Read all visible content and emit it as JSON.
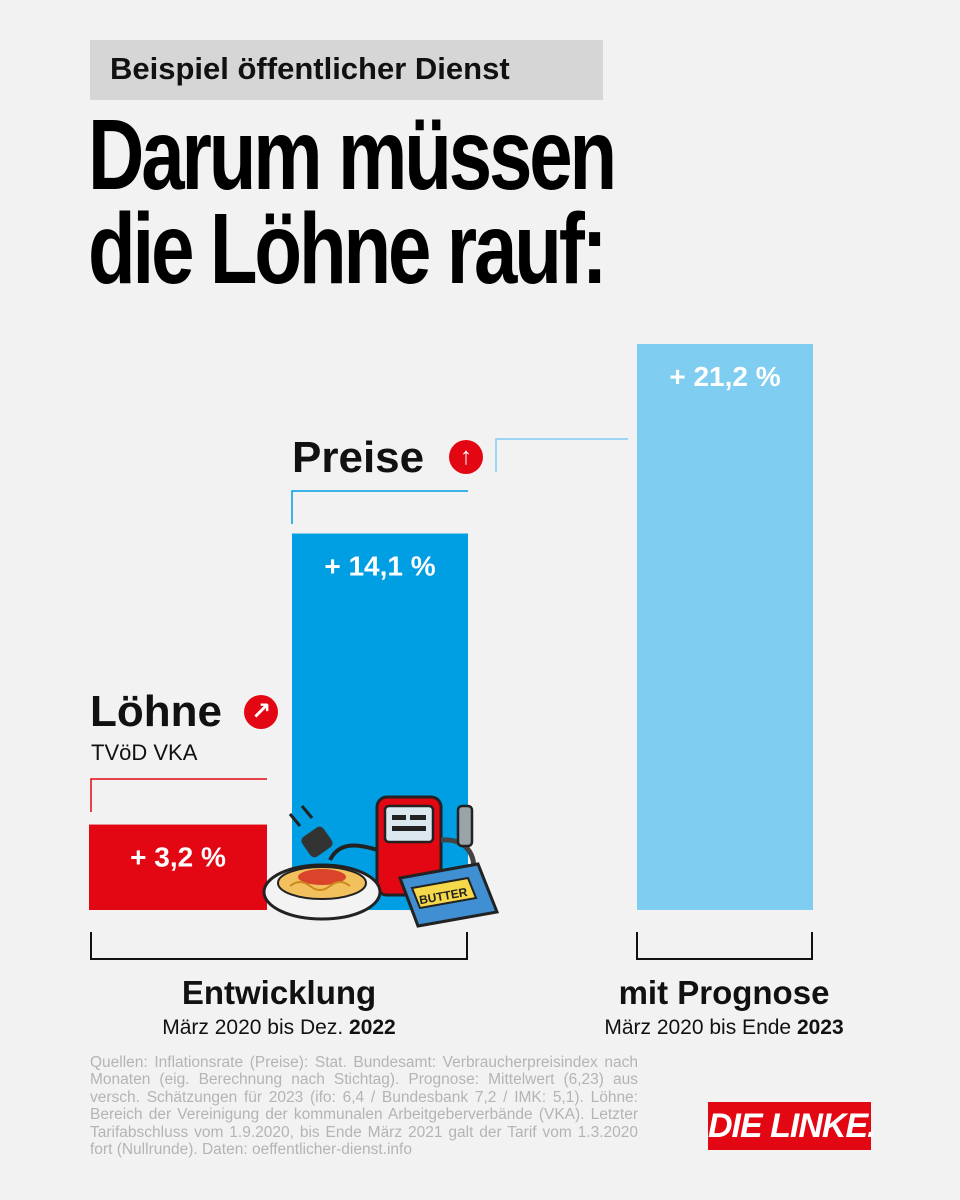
{
  "kicker": "Beispiel öffentlicher Dienst",
  "headline": [
    "Darum müssen",
    "die Löhne rauf:"
  ],
  "labels": {
    "loehne": "Löhne",
    "loehne_sub": "TVöD VKA",
    "preise": "Preise"
  },
  "colors": {
    "wages": "#e30613",
    "prices": "#009ee3",
    "forecast": "#7fcdf1",
    "brand": "#e30613"
  },
  "icons": {
    "loehne": "arrow-up-right-circle-icon",
    "preise": "arrow-up-circle-icon",
    "goods": "spaghetti-plug-fuel-pump-butter-illustration"
  },
  "chart_data": {
    "type": "bar",
    "unit": "%",
    "groups": [
      {
        "title": "Entwicklung",
        "subtitle_prefix": "März 2020 bis Dez.",
        "subtitle_year": "2022",
        "bars": [
          {
            "name": "Löhne",
            "value": 3.2,
            "label": "+ 3,2 %"
          },
          {
            "name": "Preise",
            "value": 14.1,
            "label": "+ 14,1 %"
          }
        ]
      },
      {
        "title": "mit Prognose",
        "subtitle_prefix": "März 2020 bis Ende",
        "subtitle_year": "2023",
        "bars": [
          {
            "name": "Preise",
            "value": 21.2,
            "label": "+ 21,2 %"
          }
        ]
      }
    ]
  },
  "sources": "Quellen: Inflationsrate (Preise): Stat. Bundesamt: Verbraucherpreisindex nach Monaten (eig. Berechnung nach Stichtag). Prognose: Mittelwert (6,23) aus versch. Schätzungen für 2023 (ifo: 6,4 / Bundesbank 7,2 / IMK: 5,1). Löhne: Bereich der Vereinigung der kommunalen Arbeitgeberverbände (VKA). Letzter Tarifabschluss vom 1.9.2020, bis Ende März 2021 galt der Tarif vom 1.3.2020 fort (Nullrunde). Daten: oeffentlicher-dienst.info",
  "logo": "DIE LINKE."
}
